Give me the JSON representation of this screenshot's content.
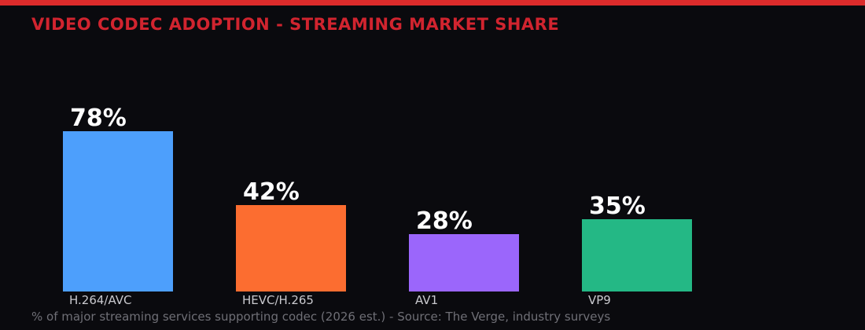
{
  "page": {
    "background_color": "#0A0A0E",
    "accent_strip_color": "#DC2B2B"
  },
  "header": {
    "title": "VIDEO CODEC ADOPTION - STREAMING MARKET SHARE",
    "title_color": "#D1242F"
  },
  "footer": {
    "caption": "% of major streaming services supporting codec (2026 est.) - Source: The Verge, industry surveys"
  },
  "chart_data": {
    "type": "bar",
    "title": "VIDEO CODEC ADOPTION - STREAMING MARKET SHARE",
    "categories": [
      "H.264/AVC",
      "HEVC/H.265",
      "AV1",
      "VP9"
    ],
    "values": [
      78,
      42,
      28,
      35
    ],
    "value_labels": [
      "78%",
      "42%",
      "28%",
      "35%"
    ],
    "bar_colors": [
      "#4D9FFC",
      "#FC6D30",
      "#9B66FB",
      "#24B885"
    ],
    "value_label_color": "#FFFFFF",
    "category_label_color": "#C9C9CE",
    "xlabel": "",
    "ylabel": "",
    "ylim": [
      0,
      100
    ],
    "grid": false,
    "legend": false,
    "caption": "% of major streaming services supporting codec (2026 est.) - Source: The Verge, industry surveys"
  }
}
